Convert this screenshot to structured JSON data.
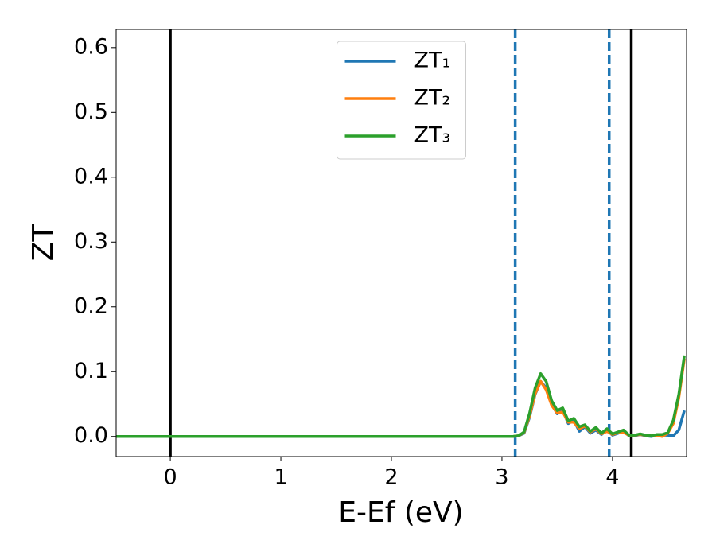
{
  "chart_data": {
    "type": "line",
    "x_label": "E-Ef (eV)",
    "y_label": "ZT",
    "x": [
      -0.5,
      0,
      0.5,
      1,
      1.5,
      2,
      2.5,
      3,
      3.1,
      3.15,
      3.2,
      3.25,
      3.3,
      3.35,
      3.4,
      3.45,
      3.5,
      3.55,
      3.6,
      3.65,
      3.7,
      3.75,
      3.8,
      3.85,
      3.9,
      3.95,
      4.0,
      4.05,
      4.1,
      4.15,
      4.2,
      4.25,
      4.3,
      4.35,
      4.4,
      4.45,
      4.5,
      4.55,
      4.6,
      4.65
    ],
    "series": [
      {
        "name": "ZT₁",
        "color": "#1f77b4",
        "values": [
          0,
          0,
          0,
          0,
          0,
          0,
          0,
          0,
          0,
          0.001,
          0.005,
          0.03,
          0.065,
          0.085,
          0.075,
          0.05,
          0.035,
          0.04,
          0.02,
          0.025,
          0.008,
          0.015,
          0.005,
          0.01,
          0.003,
          0.01,
          0.002,
          0.005,
          0.008,
          0.001,
          0.001,
          0.003,
          0.001,
          0,
          0.002,
          0.002,
          0.002,
          0.001,
          0.01,
          0.04
        ]
      },
      {
        "name": "ZT₂",
        "color": "#ff7f0e",
        "values": [
          0,
          0,
          0,
          0,
          0,
          0,
          0,
          0,
          0,
          0.001,
          0.006,
          0.032,
          0.066,
          0.085,
          0.072,
          0.048,
          0.036,
          0.038,
          0.022,
          0.022,
          0.012,
          0.016,
          0.007,
          0.012,
          0.004,
          0.008,
          0.003,
          0.006,
          0.006,
          0.002,
          0.002,
          0.003,
          0.002,
          0.001,
          0.002,
          0,
          0.005,
          0.02,
          0.06,
          0.12
        ]
      },
      {
        "name": "ZT₃",
        "color": "#2ca02c",
        "values": [
          0,
          0,
          0,
          0,
          0,
          0,
          0,
          0,
          0,
          0.001,
          0.007,
          0.036,
          0.075,
          0.097,
          0.085,
          0.055,
          0.04,
          0.044,
          0.024,
          0.028,
          0.015,
          0.018,
          0.008,
          0.014,
          0.005,
          0.012,
          0.004,
          0.007,
          0.01,
          0.002,
          0.002,
          0.004,
          0.002,
          0.001,
          0.003,
          0.003,
          0.006,
          0.025,
          0.065,
          0.125
        ]
      }
    ],
    "vlines": [
      {
        "x": 0,
        "color": "#000000",
        "style": "solid"
      },
      {
        "x": 4.17,
        "color": "#000000",
        "style": "solid"
      },
      {
        "x": 3.12,
        "color": "#1f77b4",
        "style": "dashed"
      },
      {
        "x": 3.97,
        "color": "#1f77b4",
        "style": "dashed"
      }
    ],
    "xlim": [
      -0.49,
      4.67
    ],
    "ylim": [
      -0.031,
      0.628
    ],
    "xticks": [
      0,
      1,
      2,
      3,
      4
    ],
    "yticks": [
      {
        "value": 0,
        "label": "0.0"
      },
      0.1,
      0.2,
      0.3,
      0.4,
      0.5,
      0.6
    ],
    "legend": "upper center"
  }
}
